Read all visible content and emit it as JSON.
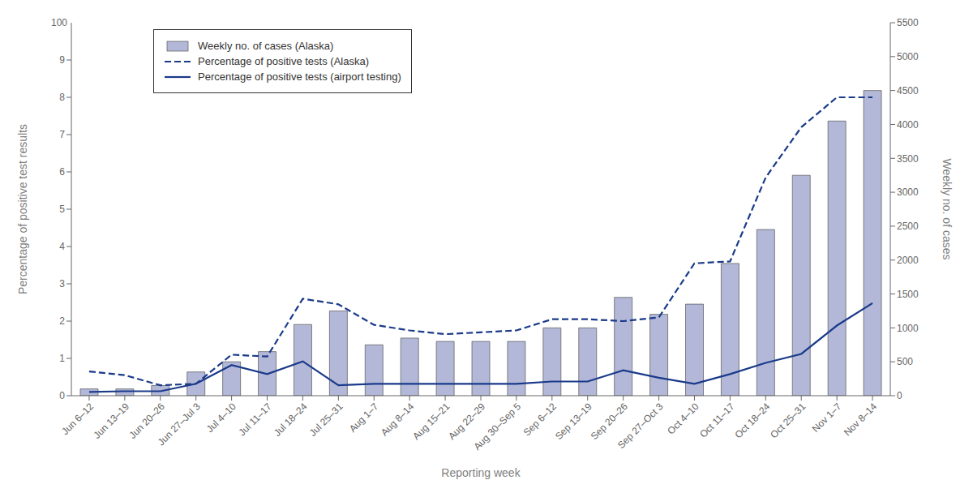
{
  "chart_data": {
    "type": "bar",
    "categories": [
      "Jun 6–12",
      "Jun 13–19",
      "Jun 20–26",
      "Jun 27–Jul 3",
      "Jul 4–10",
      "Jul 11–17",
      "Jul 18–24",
      "Jul 25–31",
      "Aug 1–7",
      "Aug 8–14",
      "Aug 15–21",
      "Aug 22–29",
      "Aug 30–Sep 5",
      "Sep 6–12",
      "Sep 13–19",
      "Sep 20–26",
      "Sep 27–Oct 3",
      "Oct 4–10",
      "Oct 11–17",
      "Oct 18–24",
      "Oct 25–31",
      "Nov 1–7",
      "Nov 8–14"
    ],
    "series": [
      {
        "name": "Weekly no. of cases (Alaska)",
        "type": "bar",
        "axis": "y2",
        "color": "#b3b8d8",
        "values": [
          100,
          100,
          150,
          350,
          500,
          650,
          1050,
          1250,
          750,
          850,
          800,
          800,
          800,
          1000,
          1000,
          1450,
          1200,
          1350,
          1950,
          2450,
          3250,
          4050,
          4500
        ]
      },
      {
        "name": "Percentage of positive tests (Alaska)",
        "type": "line",
        "line_style": "dashed",
        "color": "#1a3a8a",
        "values": [
          0.65,
          0.55,
          0.28,
          0.32,
          1.1,
          1.05,
          2.6,
          2.45,
          1.9,
          1.75,
          1.65,
          1.7,
          1.75,
          2.05,
          2.05,
          2.0,
          2.1,
          3.55,
          3.6,
          5.85,
          7.2,
          8.0,
          8.0
        ]
      },
      {
        "name": "Percentage of positive tests (airport testing)",
        "type": "line",
        "line_style": "solid",
        "color": "#1a3a8a",
        "values": [
          0.1,
          0.12,
          0.12,
          0.32,
          0.82,
          0.58,
          0.92,
          0.28,
          0.32,
          0.32,
          0.32,
          0.32,
          0.32,
          0.38,
          0.38,
          0.68,
          0.48,
          0.32,
          0.58,
          0.88,
          1.12,
          1.88,
          2.48
        ]
      }
    ],
    "xlabel": "Reporting week",
    "ylabel": "Percentage of positive test results",
    "y2label": "Weekly no. of cases",
    "ylim": [
      0,
      10
    ],
    "yticks": [
      0,
      1,
      2,
      3,
      4,
      5,
      6,
      7,
      8,
      9
    ],
    "y2lim": [
      0,
      5500
    ],
    "y2ticks": [
      0,
      500,
      1000,
      1500,
      2000,
      2500,
      3000,
      3500,
      4000,
      4500,
      5000,
      5500
    ],
    "annotations": [
      {
        "text": "100"
      }
    ],
    "legend": "upper left",
    "grid": false
  }
}
